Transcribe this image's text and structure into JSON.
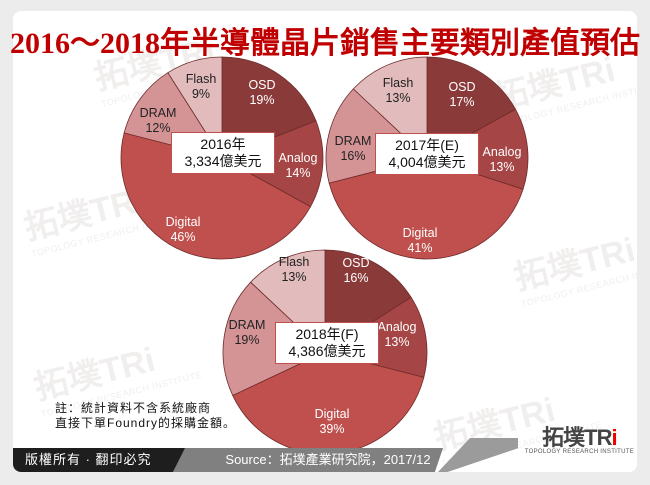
{
  "title": "2016～2018年半導體晶片銷售主要類別產值預估",
  "colors": {
    "title": "#c00000",
    "OSD": "#8b3a3a",
    "Analog": "#a64545",
    "Digital": "#c0504d",
    "DRAM": "#d49496",
    "Flash": "#e2bcbd"
  },
  "pies": [
    {
      "year_label": "2016年",
      "total_label": "3,334億美元",
      "slices": [
        {
          "name": "OSD",
          "label": "OSD",
          "pct_label": "19%"
        },
        {
          "name": "Analog",
          "label": "Analog",
          "pct_label": "14%"
        },
        {
          "name": "Digital",
          "label": "Digital",
          "pct_label": "46%"
        },
        {
          "name": "DRAM",
          "label": "DRAM",
          "pct_label": "12%"
        },
        {
          "name": "Flash",
          "label": "Flash",
          "pct_label": "9%"
        }
      ]
    },
    {
      "year_label": "2017年(E)",
      "total_label": "4,004億美元",
      "slices": [
        {
          "name": "OSD",
          "label": "OSD",
          "pct_label": "17%"
        },
        {
          "name": "Analog",
          "label": "Analog",
          "pct_label": "13%"
        },
        {
          "name": "Digital",
          "label": "Digital",
          "pct_label": "41%"
        },
        {
          "name": "DRAM",
          "label": "DRAM",
          "pct_label": "16%"
        },
        {
          "name": "Flash",
          "label": "Flash",
          "pct_label": "13%"
        }
      ]
    },
    {
      "year_label": "2018年(F)",
      "total_label": "4,386億美元",
      "slices": [
        {
          "name": "OSD",
          "label": "OSD",
          "pct_label": "16%"
        },
        {
          "name": "Analog",
          "label": "Analog",
          "pct_label": "13%"
        },
        {
          "name": "Digital",
          "label": "Digital",
          "pct_label": "39%"
        },
        {
          "name": "DRAM",
          "label": "DRAM",
          "pct_label": "19%"
        },
        {
          "name": "Flash",
          "label": "Flash",
          "pct_label": "13%"
        }
      ]
    }
  ],
  "note": {
    "line1": "註：統計資料不含系統廠商",
    "line2": "直接下單Foundry的採購金額。"
  },
  "footer": {
    "copyright": "版權所有 · 翻印必究",
    "source": "Source：拓墣產業研究院，2017/12",
    "logo_text": "拓墣TRi",
    "logo_sub": "TOPOLOGY RESEARCH INSTITUTE"
  },
  "chart_data": [
    {
      "type": "pie",
      "title": "2016年 3,334億美元",
      "categories": [
        "OSD",
        "Analog",
        "Digital",
        "DRAM",
        "Flash"
      ],
      "values": [
        19,
        14,
        46,
        12,
        9
      ],
      "total": 3334,
      "unit": "億美元"
    },
    {
      "type": "pie",
      "title": "2017年(E) 4,004億美元",
      "categories": [
        "OSD",
        "Analog",
        "Digital",
        "DRAM",
        "Flash"
      ],
      "values": [
        17,
        13,
        41,
        16,
        13
      ],
      "total": 4004,
      "unit": "億美元"
    },
    {
      "type": "pie",
      "title": "2018年(F) 4,386億美元",
      "categories": [
        "OSD",
        "Analog",
        "Digital",
        "DRAM",
        "Flash"
      ],
      "values": [
        16,
        13,
        39,
        19,
        13
      ],
      "total": 4386,
      "unit": "億美元"
    }
  ]
}
